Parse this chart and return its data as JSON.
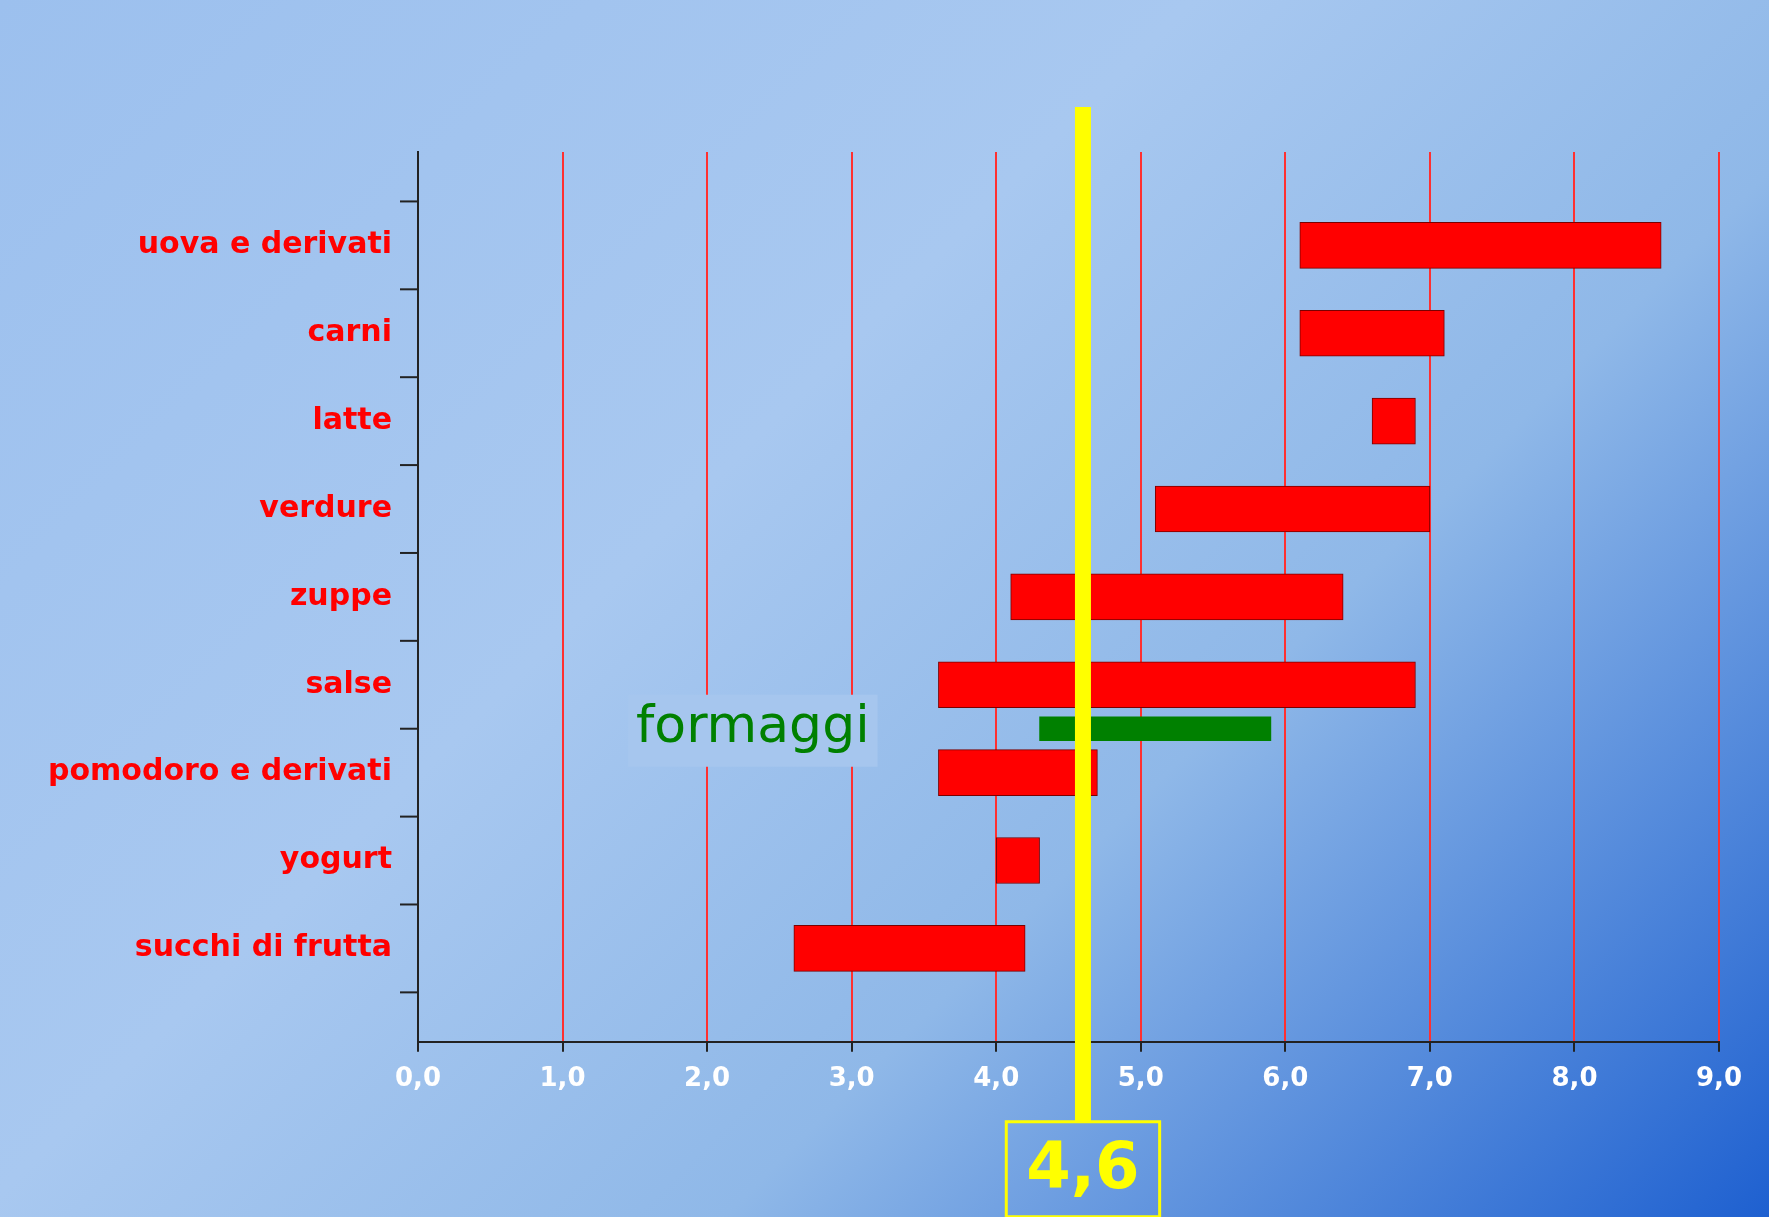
{
  "chart_data": {
    "type": "bar",
    "orientation": "horizontal",
    "categories": [
      "uova e derivati",
      "carni",
      "latte",
      "verdure",
      "zuppe",
      "salse",
      "pomodoro e derivati",
      "yogurt",
      "succhi di frutta"
    ],
    "series": [
      {
        "color": "#ff0000",
        "values": [
          2.5,
          1.0,
          0.3,
          1.9,
          2.3,
          3.3,
          1.1,
          0.3,
          1.6
        ],
        "base": [
          6.1,
          6.1,
          6.6,
          5.1,
          4.1,
          3.6,
          3.6,
          4.0,
          2.6
        ]
      },
      {
        "name": "formaggi",
        "color": "#008000",
        "values": [
          null,
          null,
          null,
          null,
          null,
          null,
          1.6,
          null,
          null
        ],
        "base": [
          null,
          null,
          null,
          null,
          null,
          null,
          4.3,
          null,
          null
        ]
      }
    ],
    "xlim": [
      0,
      9
    ],
    "xticks": [
      {
        "value": 0,
        "label": "0,0"
      },
      {
        "value": 1,
        "label": "1,0"
      },
      {
        "value": 2,
        "label": "2,0"
      },
      {
        "value": 3,
        "label": "3,0"
      },
      {
        "value": 4,
        "label": "4,0"
      },
      {
        "value": 5,
        "label": "5,0"
      },
      {
        "value": 6,
        "label": "6,0"
      },
      {
        "value": 7,
        "label": "7,0"
      },
      {
        "value": 8,
        "label": "8,0"
      },
      {
        "value": 9,
        "label": "9,0"
      }
    ],
    "grid": "x",
    "legend": false,
    "ref_lines": [
      {
        "axis": "x",
        "value": 4.6,
        "label": "4,6",
        "color": "#ffff00"
      }
    ]
  }
}
